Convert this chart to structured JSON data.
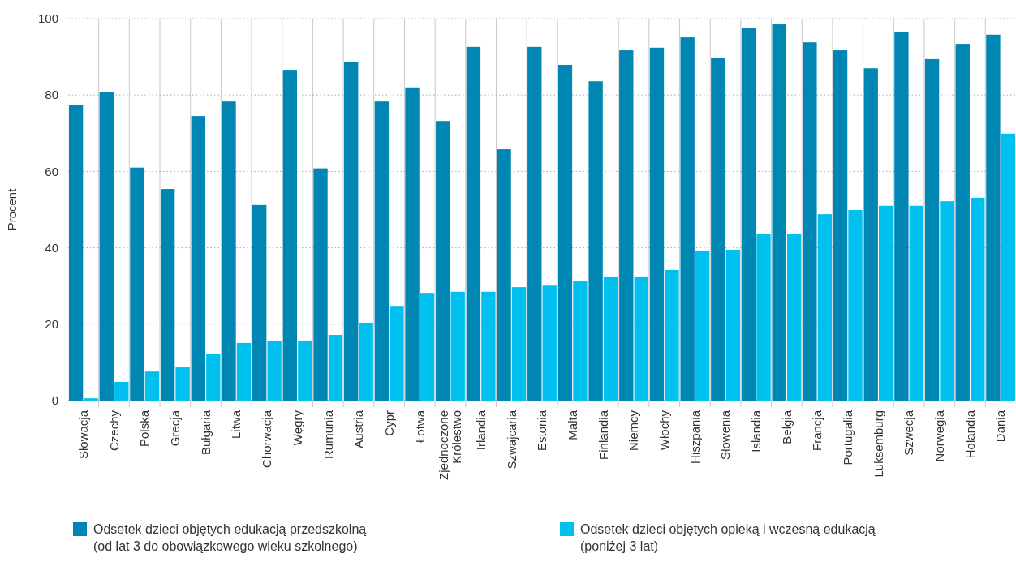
{
  "chart_data": {
    "type": "bar",
    "ylabel": "Procent",
    "categories": [
      "Słowacja",
      "Czechy",
      "Polska",
      "Grecja",
      "Bułgaria",
      "Litwa",
      "Chorwacja",
      "Węgry",
      "Rumunia",
      "Austria",
      "Cypr",
      "Łotwa",
      "Zjednoczone Królestwo",
      "Irlandia",
      "Szwajcaria",
      "Estonia",
      "Malta",
      "Finlandia",
      "Niemcy",
      "Włochy",
      "Hiszpania",
      "Słowenia",
      "Islandia",
      "Belgia",
      "Francja",
      "Portugalia",
      "Luksemburg",
      "Szwecja",
      "Norwegia",
      "Holandia",
      "Dania"
    ],
    "series": [
      {
        "name": "Odsetek dzieci objętych edukacją przedszkolną (od lat 3 do obowiązkowego wieku szkolnego)",
        "color": "#0086b3",
        "values": [
          77.3,
          80.7,
          61,
          55.4,
          74.5,
          78.3,
          51.2,
          86.6,
          60.8,
          88.7,
          78.3,
          82,
          73.2,
          92.6,
          65.8,
          92.6,
          87.9,
          83.6,
          91.7,
          92.4,
          95.1,
          89.8,
          97.5,
          98.5,
          93.8,
          91.7,
          87,
          96.6,
          89.4,
          93.4,
          95.8
        ]
      },
      {
        "name": "Odsetek dzieci objętych opieką i wczesną edukacją (poniżej 3 lat)",
        "color": "#00c0ef",
        "values": [
          0.6,
          4.9,
          7.6,
          8.7,
          12.3,
          15.1,
          15.5,
          15.5,
          17.2,
          20.4,
          24.8,
          28.2,
          28.5,
          28.5,
          29.7,
          30.1,
          31.2,
          32.5,
          32.5,
          34.2,
          39.3,
          39.5,
          43.7,
          43.7,
          48.8,
          49.9,
          51,
          51,
          52.2,
          53.1,
          69.9
        ]
      }
    ],
    "ylim": [
      0,
      100
    ],
    "yticks": [
      0,
      20,
      40,
      60,
      80,
      100
    ],
    "grid": true,
    "legend": "bottom"
  }
}
